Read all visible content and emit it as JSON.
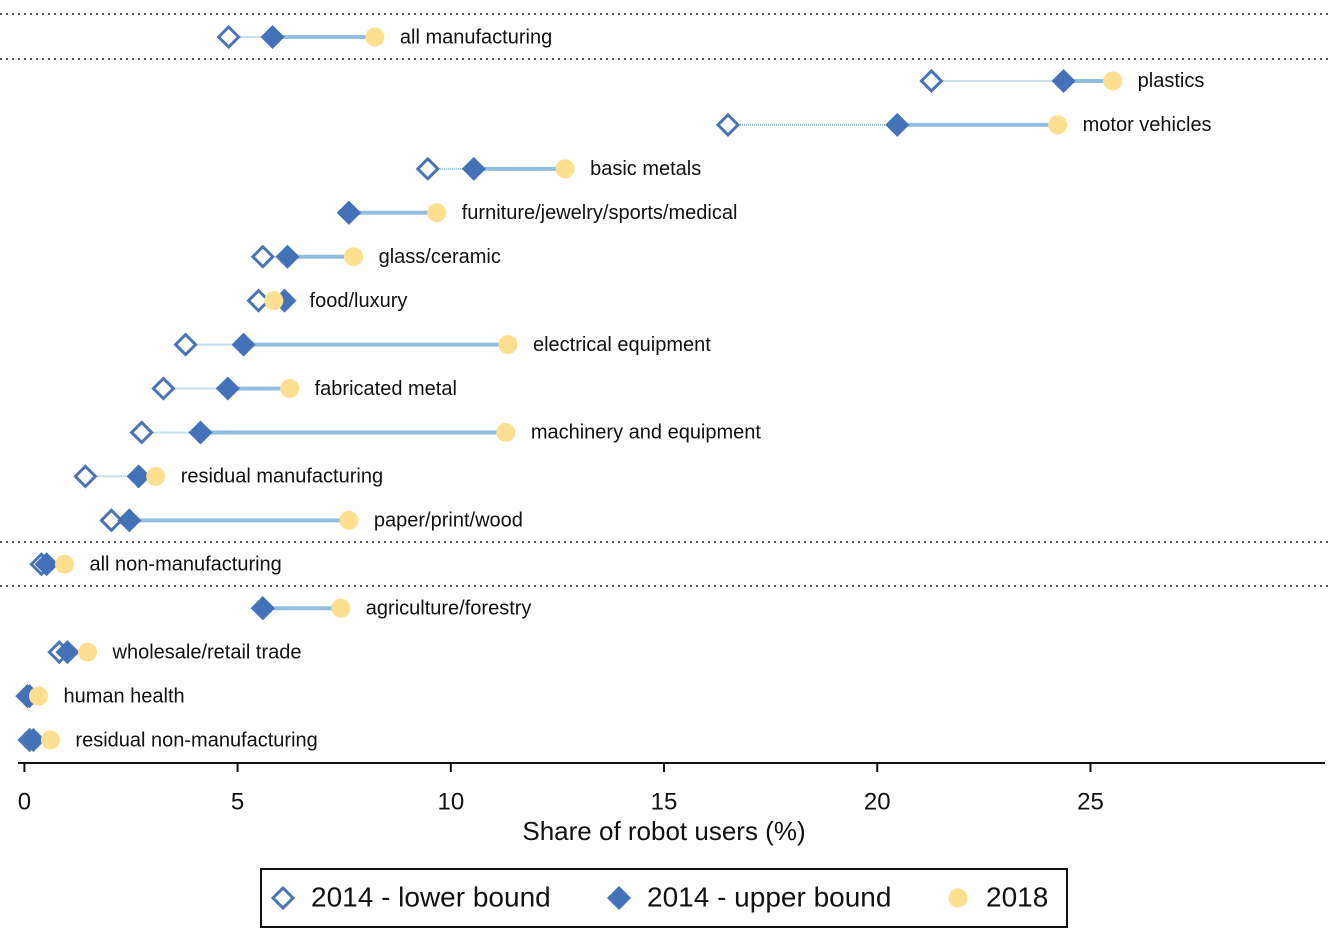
{
  "chart_data": {
    "type": "dumbbell",
    "xlabel": "Share of robot users (%)",
    "categories": [
      "all manufacturing",
      "plastics",
      "motor vehicles",
      "basic metals",
      "furniture/jewelry/sports/medical",
      "glass/ceramic",
      "food/luxury",
      "electrical equipment",
      "fabricated metal",
      "machinery and equipment",
      "residual manufacturing",
      "paper/print/wood",
      "all non-manufacturing",
      "agriculture/forestry",
      "wholesale/retail trade",
      "human health",
      "residual non-manufacturing"
    ],
    "series": [
      {
        "name": "2014 - lower bound",
        "color": "#4a74b5",
        "values": [
          4.79,
          21.27,
          16.5,
          9.46,
          7.61,
          5.59,
          5.49,
          3.78,
          3.26,
          2.75,
          1.43,
          2.04,
          0.4,
          5.59,
          0.82,
          0.07,
          0.12
        ]
      },
      {
        "name": "2014 - upper bound",
        "color": "#4472b8",
        "values": [
          5.82,
          24.37,
          20.47,
          10.54,
          7.61,
          6.17,
          6.1,
          5.14,
          4.77,
          4.13,
          2.68,
          2.46,
          0.52,
          5.59,
          1.01,
          0.12,
          0.21
        ]
      },
      {
        "name": "2018",
        "color": "#fde08f",
        "values": [
          8.22,
          25.52,
          24.23,
          12.68,
          9.67,
          7.72,
          5.85,
          11.34,
          6.22,
          11.29,
          3.08,
          7.61,
          0.94,
          7.42,
          1.48,
          0.33,
          0.61
        ]
      }
    ],
    "line_color": "#90bde0",
    "xlim": [
      -0.15,
      30.5
    ],
    "xticks": [
      0,
      5,
      10,
      15,
      20,
      25
    ]
  }
}
